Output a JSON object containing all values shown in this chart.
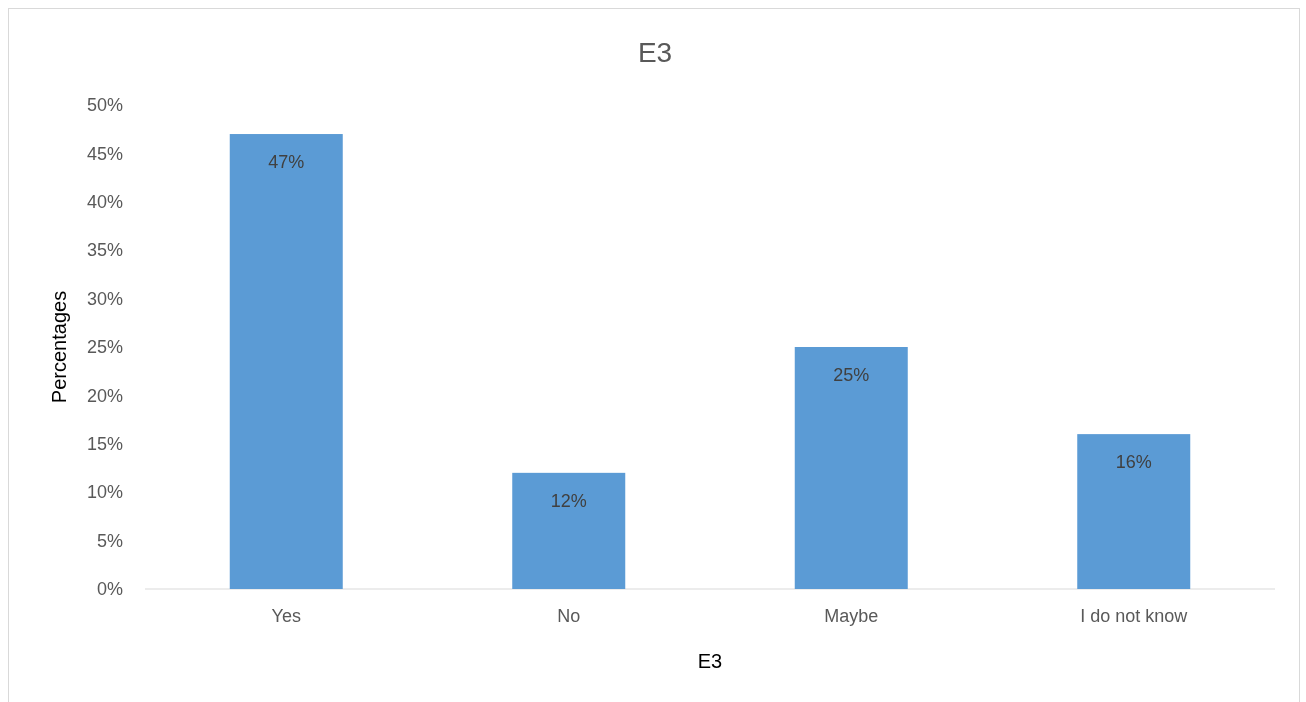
{
  "chart_data": {
    "type": "bar",
    "title": "E3",
    "xlabel": "E3",
    "ylabel": "Percentages",
    "categories": [
      "Yes",
      "No",
      "Maybe",
      "I do not know"
    ],
    "values": [
      47,
      12,
      25,
      16
    ],
    "color": "#5b9bd5",
    "value_labels": [
      "47%",
      "12%",
      "25%",
      "16%"
    ],
    "ylim": [
      0,
      50
    ],
    "yticks": [
      {
        "value": 0,
        "label": "0%"
      },
      {
        "value": 5,
        "label": "5%"
      },
      {
        "value": 10,
        "label": "10%"
      },
      {
        "value": 15,
        "label": "15%"
      },
      {
        "value": 20,
        "label": "20%"
      },
      {
        "value": 25,
        "label": "25%"
      },
      {
        "value": 30,
        "label": "30%"
      },
      {
        "value": 35,
        "label": "35%"
      },
      {
        "value": 40,
        "label": "40%"
      },
      {
        "value": 45,
        "label": "45%"
      },
      {
        "value": 50,
        "label": "50%"
      }
    ],
    "grid": false
  }
}
